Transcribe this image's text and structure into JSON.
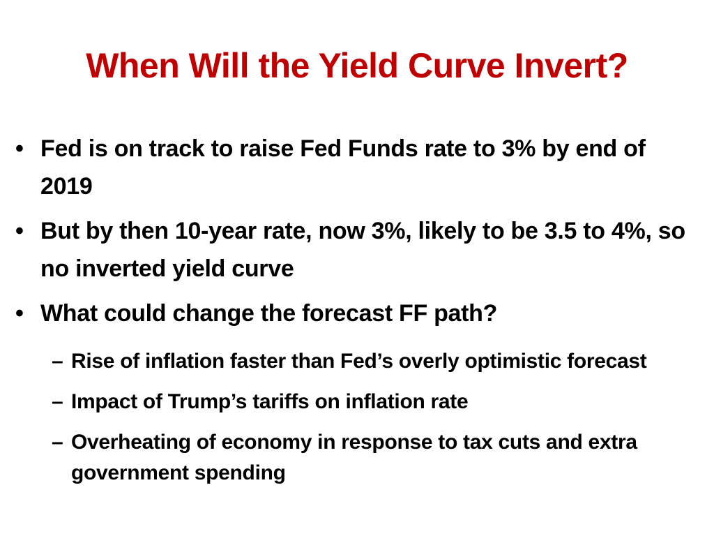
{
  "slide": {
    "title": "When Will the Yield Curve Invert?",
    "bullets": [
      {
        "marker": "•",
        "text": "Fed is on track to raise Fed Funds rate to 3% by end of 2019"
      },
      {
        "marker": "•",
        "text": "But by then 10-year rate, now 3%, likely to be 3.5 to 4%, so no inverted yield curve"
      },
      {
        "marker": "•",
        "text": "What could change the forecast FF path?"
      }
    ],
    "subbullets": [
      {
        "marker": "–",
        "text": "Rise of inflation faster than Fed’s overly optimistic forecast"
      },
      {
        "marker": "–",
        "text": "Impact of Trump’s tariffs on inflation rate"
      },
      {
        "marker": "–",
        "text": "Overheating of economy in response to tax cuts and extra government spending"
      }
    ],
    "colors": {
      "title": "#c00000",
      "body": "#000000",
      "background": "#ffffff"
    }
  }
}
